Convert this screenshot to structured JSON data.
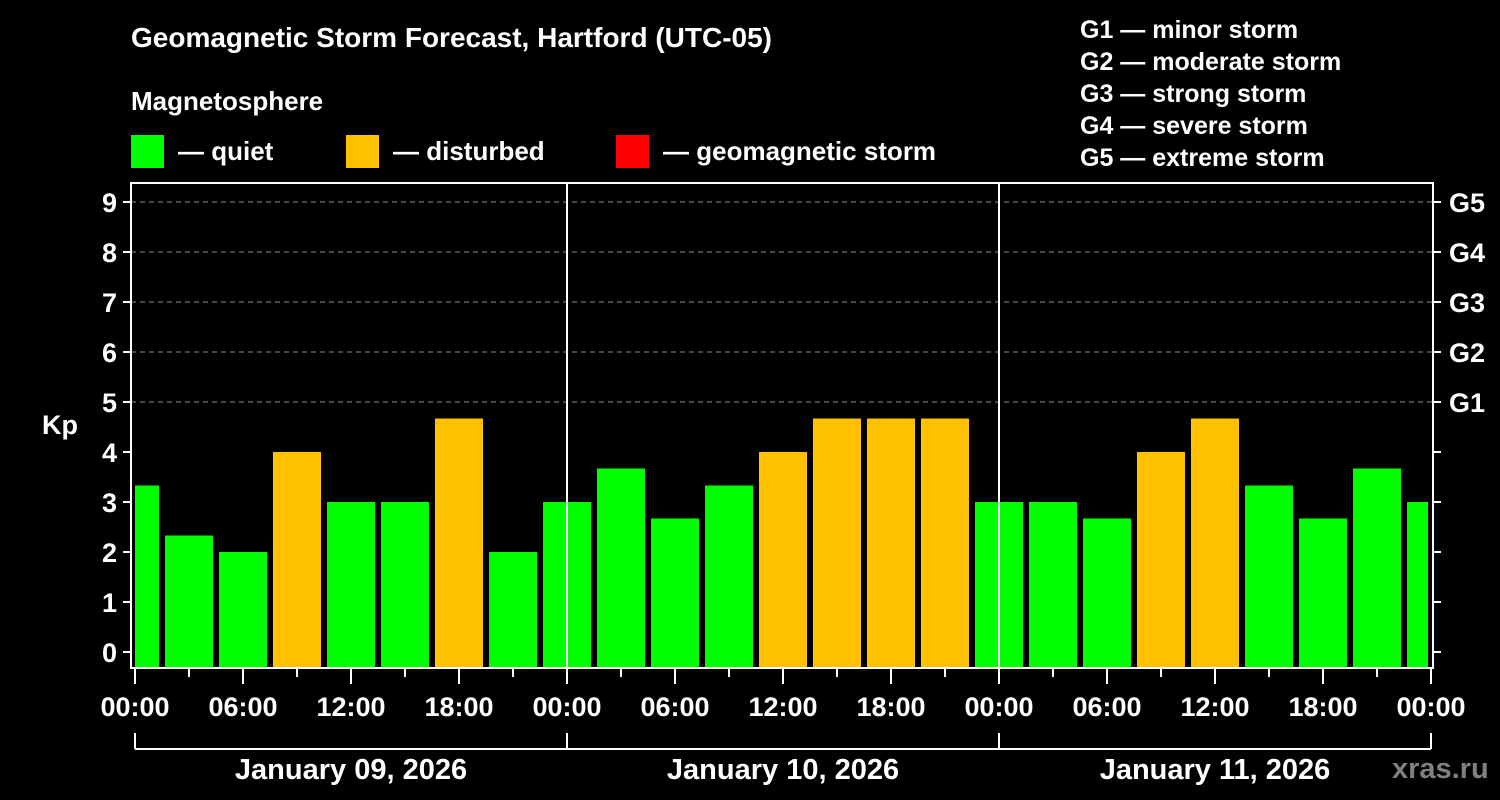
{
  "header": {
    "title": "Geomagnetic Storm Forecast, Hartford (UTC-05)",
    "subtitle": "Magnetosphere"
  },
  "legend": [
    {
      "label": "— quiet",
      "color": "#00ff00"
    },
    {
      "label": "— disturbed",
      "color": "#ffc000"
    },
    {
      "label": "— geomagnetic storm",
      "color": "#ff0000"
    }
  ],
  "g_scale": [
    "G1 — minor storm",
    "G2 — moderate storm",
    "G3 — strong storm",
    "G4 — severe storm",
    "G5 — extreme storm"
  ],
  "watermark": "xras.ru",
  "chart_data": {
    "type": "bar",
    "title": "Geomagnetic Storm Forecast, Hartford (UTC-05)",
    "ylabel": "Kp",
    "ylim": [
      0,
      9
    ],
    "yticks": [
      0,
      1,
      2,
      3,
      4,
      5,
      6,
      7,
      8,
      9
    ],
    "right_axis_labels": [
      {
        "kp": 5,
        "label": "G1"
      },
      {
        "kp": 6,
        "label": "G2"
      },
      {
        "kp": 7,
        "label": "G3"
      },
      {
        "kp": 8,
        "label": "G4"
      },
      {
        "kp": 9,
        "label": "G5"
      }
    ],
    "grid": "dashed horizontal at Kp 5-9",
    "x_tick_labels": [
      "00:00",
      "06:00",
      "12:00",
      "18:00",
      "00:00",
      "06:00",
      "12:00",
      "18:00",
      "00:00",
      "06:00",
      "12:00",
      "18:00",
      "00:00"
    ],
    "days": [
      "January 09, 2026",
      "January 10, 2026",
      "January 11, 2026"
    ],
    "bar_interval_hours": 3,
    "colors": {
      "quiet": "#00ff00",
      "disturbed": "#ffc000",
      "storm": "#ff0000"
    },
    "bars": [
      {
        "start_hour": -1.5,
        "kp": 3.33,
        "level": "quiet"
      },
      {
        "start_hour": 1.5,
        "kp": 2.33,
        "level": "quiet"
      },
      {
        "start_hour": 4.5,
        "kp": 2.0,
        "level": "quiet"
      },
      {
        "start_hour": 7.5,
        "kp": 4.0,
        "level": "disturbed"
      },
      {
        "start_hour": 10.5,
        "kp": 3.0,
        "level": "quiet"
      },
      {
        "start_hour": 13.5,
        "kp": 3.0,
        "level": "quiet"
      },
      {
        "start_hour": 16.5,
        "kp": 4.67,
        "level": "disturbed"
      },
      {
        "start_hour": 19.5,
        "kp": 2.0,
        "level": "quiet"
      },
      {
        "start_hour": 22.5,
        "kp": 3.0,
        "level": "quiet"
      },
      {
        "start_hour": 25.5,
        "kp": 3.67,
        "level": "quiet"
      },
      {
        "start_hour": 28.5,
        "kp": 2.67,
        "level": "quiet"
      },
      {
        "start_hour": 31.5,
        "kp": 3.33,
        "level": "quiet"
      },
      {
        "start_hour": 34.5,
        "kp": 4.0,
        "level": "disturbed"
      },
      {
        "start_hour": 37.5,
        "kp": 4.67,
        "level": "disturbed"
      },
      {
        "start_hour": 40.5,
        "kp": 4.67,
        "level": "disturbed"
      },
      {
        "start_hour": 43.5,
        "kp": 4.67,
        "level": "disturbed"
      },
      {
        "start_hour": 46.5,
        "kp": 3.0,
        "level": "quiet"
      },
      {
        "start_hour": 49.5,
        "kp": 3.0,
        "level": "quiet"
      },
      {
        "start_hour": 52.5,
        "kp": 2.67,
        "level": "quiet"
      },
      {
        "start_hour": 55.5,
        "kp": 4.0,
        "level": "disturbed"
      },
      {
        "start_hour": 58.5,
        "kp": 4.67,
        "level": "disturbed"
      },
      {
        "start_hour": 61.5,
        "kp": 3.33,
        "level": "quiet"
      },
      {
        "start_hour": 64.5,
        "kp": 2.67,
        "level": "quiet"
      },
      {
        "start_hour": 67.5,
        "kp": 3.67,
        "level": "quiet"
      },
      {
        "start_hour": 70.5,
        "kp": 3.0,
        "level": "quiet"
      }
    ]
  }
}
